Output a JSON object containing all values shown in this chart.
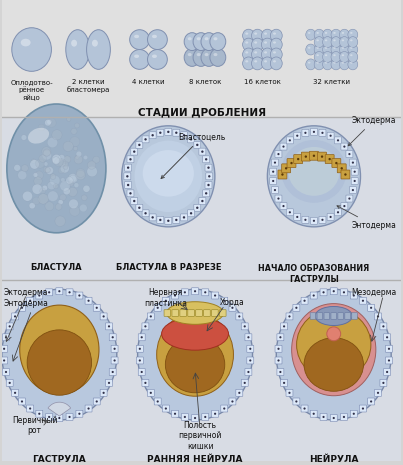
{
  "bg_color": "#d4d4d4",
  "sec1_bg": "#e0e0e0",
  "sec2_bg": "#d8dce4",
  "sec3_bg": "#d8dce4",
  "title_stadii": "СТАДИИ ДРОБЛЕНИЯ",
  "labels_top": [
    "Оплодотво-\nрённое\nяйцо",
    "2 клетки\nбластомера",
    "4 клетки",
    "8 клеток",
    "16 клеток",
    "32 клетки"
  ],
  "labels_mid": [
    "БЛАСТУЛА",
    "БЛАСТУЛА В РАЗРЕЗЕ",
    "НАЧАЛО ОБРАЗОВАНИЯ\nГАСТРУЛЫ"
  ],
  "labels_bot": [
    "ГАСТРУЛА",
    "РАННЯЯ НЕЙРУЛА",
    "НЕЙРУЛА"
  ],
  "cell_fill": "#b8c8dc",
  "cell_edge": "#8898b8",
  "cell_highlight": "#d8e4f0",
  "blastula_fill": "#a0b4c8",
  "blastula_texture": "#b8c8d8",
  "inner_cavity": "#c8d8e8",
  "ectoderm_ring": "#c8d4e8",
  "entoderm_orange": "#c8a040",
  "yolk_dark": "#a06820",
  "yolk_mid": "#b87828",
  "neural_yellow": "#d8c060",
  "chorda_red": "#cc5040",
  "mesoderm_pink": "#d89090",
  "cell_white": "#e8f0f8",
  "nucleus_dark": "#303048",
  "sec_divider": "#b0b0b0",
  "label_color": "#111111",
  "annot_color": "#111111"
}
